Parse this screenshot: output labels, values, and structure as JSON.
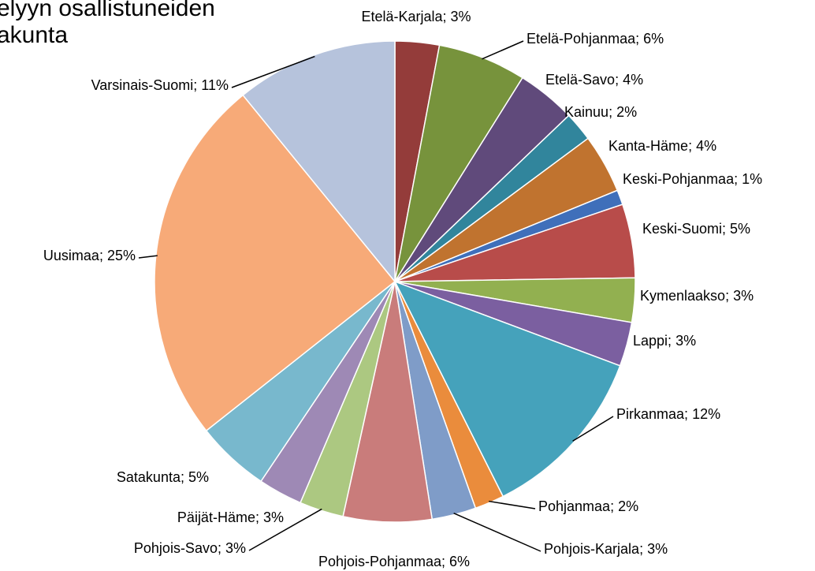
{
  "chart_data": {
    "type": "pie",
    "title": [
      "elyyn osallistuneiden",
      "akunta"
    ],
    "label_separator": "; ",
    "categories": [
      "Etelä-Karjala",
      "Etelä-Pohjanmaa",
      "Etelä-Savo",
      "Kainuu",
      "Kanta-Häme",
      "Keski-Pohjanmaa",
      "Keski-Suomi",
      "Kymenlaakso",
      "Lappi",
      "Pirkanmaa",
      "Pohjanmaa",
      "Pohjois-Karjala",
      "Pohjois-Pohjanmaa",
      "Pohjois-Savo",
      "Päijät-Häme",
      "Satakunta",
      "Uusimaa",
      "Varsinais-Suomi"
    ],
    "values": [
      3,
      6,
      4,
      2,
      4,
      1,
      5,
      3,
      3,
      12,
      2,
      3,
      6,
      3,
      3,
      5,
      25,
      11
    ],
    "value_labels": [
      "3%",
      "6%",
      "4%",
      "2%",
      "4%",
      "1%",
      "5%",
      "3%",
      "3%",
      "12%",
      "2%",
      "3%",
      "6%",
      "3%",
      "3%",
      "5%",
      "25%",
      "11%"
    ],
    "colors": [
      "#943c3a",
      "#77933c",
      "#604a7b",
      "#31859c",
      "#c0732f",
      "#3f6fba",
      "#b84c4a",
      "#92b050",
      "#7b5fa0",
      "#45a2bb",
      "#ea8c3c",
      "#7f9cc8",
      "#c97c7b",
      "#acc881",
      "#9e89b5",
      "#78b8cd",
      "#f7aa78",
      "#b6c3dc"
    ]
  }
}
